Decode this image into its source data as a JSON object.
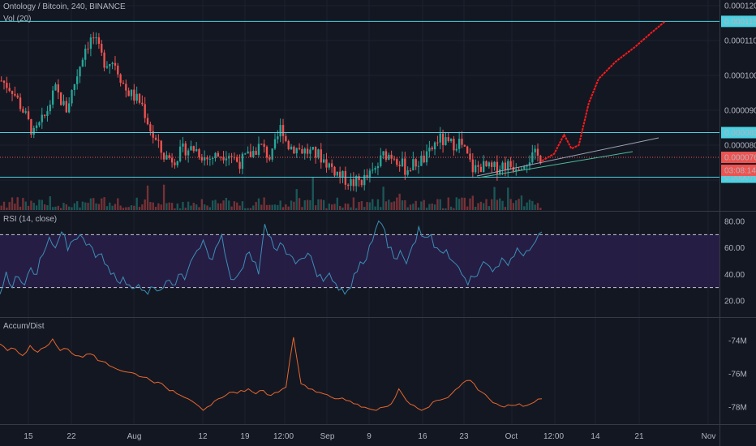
{
  "header": {
    "symbol": "Ontology / Bitcoin, 240, BINANCE",
    "volume_label": "Vol (20)",
    "rsi_label": "RSI (14, close)",
    "ad_label": "Accum/Dist"
  },
  "colors": {
    "background": "#131722",
    "up": "#26a69a",
    "down": "#ef5350",
    "hline": "#4dd0e1",
    "rsi_line": "#3a8fb7",
    "rsi_band": "#2a1f4a",
    "ad_line": "#e8672d",
    "forecast": "#ff1a1a",
    "price_line": "#ef5350"
  },
  "chart_data": [
    {
      "type": "candlestick",
      "pane": "price",
      "ylim": [
        6.5e-05,
        0.00012
      ],
      "y_ticks": [
        "0.0001200",
        "0.0001100",
        "0.0001000",
        "0.0000900",
        "0.0000800",
        "0.0000700"
      ],
      "x_ticks": [
        "15",
        "22",
        "Aug",
        "12",
        "19",
        "12:00",
        "Sep",
        "9",
        "16",
        "23",
        "Oct",
        "12:00",
        "14",
        "21",
        "Nov"
      ],
      "horizontal_levels": [
        "0.0001155",
        "0.0000836",
        "0.0000708"
      ],
      "current_price": "0.0000765",
      "countdown": "03:08:14",
      "close_path": [
        {
          "x": 0,
          "y": 9.85e-05
        },
        {
          "x": 0.02,
          "y": 9.6e-05
        },
        {
          "x": 0.04,
          "y": 9e-05
        },
        {
          "x": 0.06,
          "y": 8.3e-05
        },
        {
          "x": 0.08,
          "y": 8.8e-05
        },
        {
          "x": 0.1,
          "y": 9.6e-05
        },
        {
          "x": 0.12,
          "y": 9e-05
        },
        {
          "x": 0.14,
          "y": 0.0001
        },
        {
          "x": 0.155,
          "y": 0.000108
        },
        {
          "x": 0.17,
          "y": 0.000111
        },
        {
          "x": 0.19,
          "y": 0.000104
        },
        {
          "x": 0.21,
          "y": 0.000104
        },
        {
          "x": 0.23,
          "y": 9.6e-05
        },
        {
          "x": 0.26,
          "y": 9.2e-05
        },
        {
          "x": 0.28,
          "y": 8.3e-05
        },
        {
          "x": 0.3,
          "y": 7.7e-05
        },
        {
          "x": 0.32,
          "y": 7.6e-05
        },
        {
          "x": 0.34,
          "y": 7.9e-05
        },
        {
          "x": 0.36,
          "y": 7.9e-05
        },
        {
          "x": 0.38,
          "y": 7.6e-05
        },
        {
          "x": 0.4,
          "y": 7.7e-05
        },
        {
          "x": 0.42,
          "y": 7.8e-05
        },
        {
          "x": 0.44,
          "y": 7.5e-05
        },
        {
          "x": 0.46,
          "y": 7.7e-05
        },
        {
          "x": 0.48,
          "y": 8e-05
        },
        {
          "x": 0.5,
          "y": 7.6e-05
        },
        {
          "x": 0.52,
          "y": 8.6e-05
        },
        {
          "x": 0.53,
          "y": 8e-05
        },
        {
          "x": 0.55,
          "y": 7.9e-05
        },
        {
          "x": 0.57,
          "y": 7.8e-05
        },
        {
          "x": 0.59,
          "y": 7.7e-05
        },
        {
          "x": 0.61,
          "y": 7.4e-05
        },
        {
          "x": 0.63,
          "y": 7.1e-05
        },
        {
          "x": 0.65,
          "y": 6.9e-05
        },
        {
          "x": 0.67,
          "y": 7e-05
        },
        {
          "x": 0.69,
          "y": 7.2e-05
        },
        {
          "x": 0.71,
          "y": 7.75e-05
        },
        {
          "x": 0.73,
          "y": 7.7e-05
        },
        {
          "x": 0.75,
          "y": 7.3e-05
        },
        {
          "x": 0.77,
          "y": 7.5e-05
        },
        {
          "x": 0.79,
          "y": 7.65e-05
        },
        {
          "x": 0.81,
          "y": 8.2e-05
        },
        {
          "x": 0.83,
          "y": 8e-05
        },
        {
          "x": 0.85,
          "y": 8.1e-05
        },
        {
          "x": 0.86,
          "y": 7.8e-05
        },
        {
          "x": 0.875,
          "y": 7.3e-05
        },
        {
          "x": 0.89,
          "y": 7.4e-05
        },
        {
          "x": 0.91,
          "y": 7.3e-05
        },
        {
          "x": 0.93,
          "y": 7.45e-05
        },
        {
          "x": 0.95,
          "y": 7.4e-05
        },
        {
          "x": 0.97,
          "y": 7.55e-05
        },
        {
          "x": 0.99,
          "y": 7.7e-05
        },
        {
          "x": 1.0,
          "y": 7.65e-05
        }
      ],
      "forecast_path": [
        {
          "x": 0,
          "y": 7.55e-05
        },
        {
          "x": 0.1,
          "y": 7.75e-05
        },
        {
          "x": 0.18,
          "y": 8.3e-05
        },
        {
          "x": 0.24,
          "y": 7.9e-05
        },
        {
          "x": 0.3,
          "y": 8e-05
        },
        {
          "x": 0.38,
          "y": 9.2e-05
        },
        {
          "x": 0.46,
          "y": 9.9e-05
        },
        {
          "x": 0.6,
          "y": 0.000104
        },
        {
          "x": 0.75,
          "y": 0.000108
        },
        {
          "x": 0.88,
          "y": 0.000112
        },
        {
          "x": 1.0,
          "y": 0.0001155
        }
      ],
      "trendlines": [
        {
          "from": {
            "x": "Sep 26",
            "y": 7.08e-05
          },
          "to": {
            "x": "Oct 20",
            "y": 8.15e-05
          }
        },
        {
          "from": {
            "x": "Sep 26",
            "y": 7e-05
          },
          "to": {
            "x": "Oct 20",
            "y": 7.7e-05
          }
        }
      ]
    },
    {
      "type": "line",
      "pane": "rsi",
      "ylim": [
        10,
        85
      ],
      "y_ticks": [
        "80.00",
        "60.00",
        "40.00",
        "20.00"
      ],
      "band": [
        30,
        70
      ],
      "values": [
        25,
        42,
        30,
        38,
        32,
        45,
        40,
        55,
        68,
        60,
        72,
        58,
        66,
        70,
        62,
        60,
        55,
        48,
        40,
        35,
        38,
        32,
        30,
        28,
        25,
        30,
        28,
        35,
        32,
        40,
        36,
        50,
        58,
        66,
        52,
        60,
        70,
        46,
        36,
        42,
        55,
        50,
        40,
        78,
        68,
        58,
        62,
        55,
        48,
        52,
        56,
        46,
        40,
        38,
        35,
        28,
        25,
        30,
        42,
        48,
        62,
        74,
        78,
        60,
        52,
        58,
        48,
        62,
        76,
        68,
        70,
        60,
        56,
        52,
        48,
        40,
        32,
        38,
        45,
        48,
        42,
        46,
        50,
        52,
        60,
        54,
        58,
        65,
        72
      ]
    },
    {
      "type": "line",
      "pane": "accum_dist",
      "ylim": [
        -78.7,
        -73.0
      ],
      "y_ticks": [
        "-74M",
        "-76M",
        "-78M"
      ],
      "values": [
        -74.2,
        -74.6,
        -74.5,
        -74.9,
        -74.3,
        -74.7,
        -74.4,
        -73.9,
        -74.6,
        -74.5,
        -74.9,
        -75.0,
        -74.8,
        -75.2,
        -75.3,
        -75.6,
        -75.8,
        -75.9,
        -76.0,
        -76.2,
        -76.4,
        -76.5,
        -76.8,
        -77.0,
        -77.3,
        -77.5,
        -77.8,
        -78.2,
        -77.9,
        -77.5,
        -77.3,
        -77.1,
        -77.0,
        -76.9,
        -77.2,
        -77.0,
        -77.3,
        -77.1,
        -76.8,
        -73.8,
        -76.6,
        -76.9,
        -77.1,
        -77.2,
        -77.4,
        -77.5,
        -77.6,
        -77.8,
        -78.0,
        -78.1,
        -78.2,
        -78.0,
        -77.8,
        -76.9,
        -77.6,
        -77.9,
        -78.2,
        -78.0,
        -77.6,
        -77.5,
        -77.2,
        -76.8,
        -76.4,
        -76.6,
        -77.1,
        -77.5,
        -77.8,
        -78.0,
        -77.9,
        -77.8,
        -77.9,
        -77.7,
        -77.5
      ]
    }
  ]
}
